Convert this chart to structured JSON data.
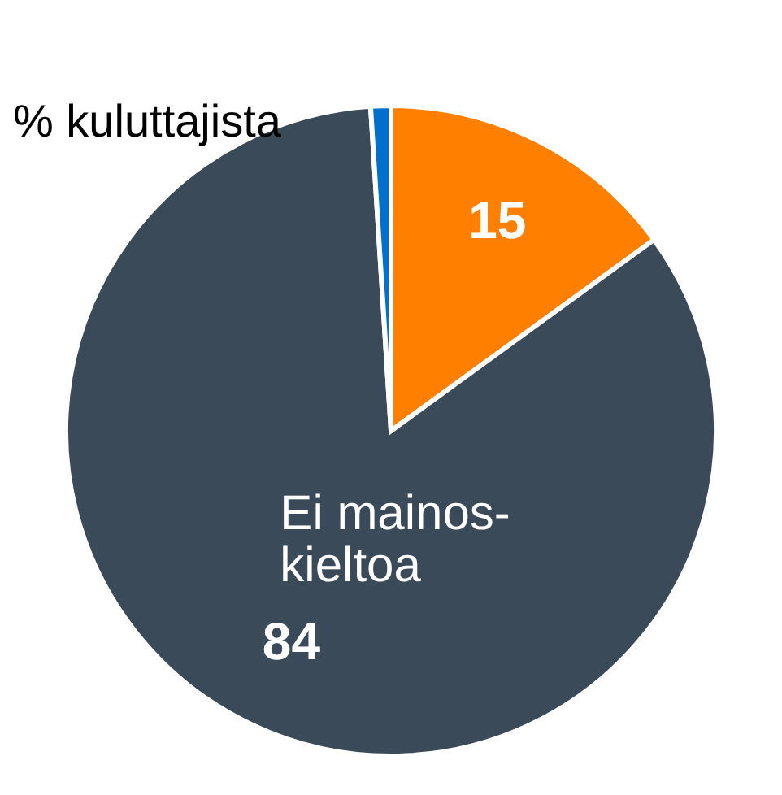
{
  "chart_data": {
    "type": "pie",
    "title": "% kuluttajista",
    "categories": [
      null,
      "Ei mainos-kieltoa",
      null
    ],
    "values": [
      15,
      84,
      1
    ],
    "colors": [
      "#ff8000",
      "#3b4a59",
      "#0070cc"
    ],
    "value_labels": [
      "15",
      "84",
      null
    ]
  }
}
